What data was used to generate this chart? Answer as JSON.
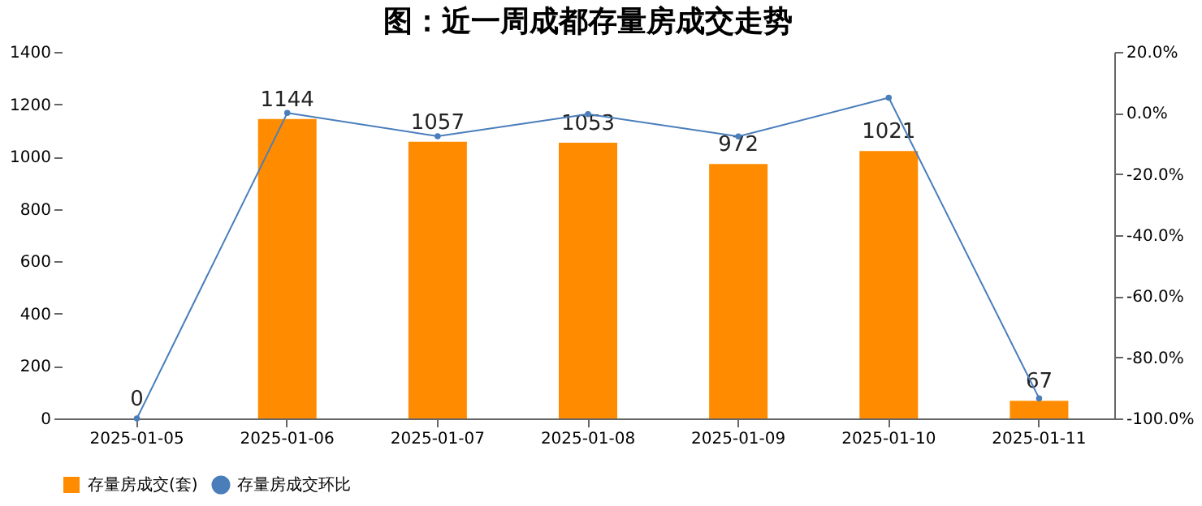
{
  "chart_data": {
    "type": "bar",
    "title": "图：近一周成都存量房成交走势",
    "categories": [
      "2025-01-05",
      "2025-01-06",
      "2025-01-07",
      "2025-01-08",
      "2025-01-09",
      "2025-01-10",
      "2025-01-11"
    ],
    "series": [
      {
        "name": "存量房成交(套)",
        "color": "#ff8c00",
        "values": [
          0,
          1144,
          1057,
          1053,
          972,
          1021,
          67
        ],
        "value_labels": [
          "0",
          "1144",
          "1057",
          "1053",
          "972",
          "1021",
          "67"
        ]
      },
      {
        "name": "存量房成交环比",
        "type": "line",
        "axis": "y2",
        "color": "#4a7ebb",
        "marker": "circle",
        "values": [
          -100,
          0,
          -7.6,
          -0.4,
          -7.7,
          5.0,
          -93.4
        ]
      }
    ],
    "ylim": [
      0,
      1400
    ],
    "yticks": [
      0,
      200,
      400,
      600,
      800,
      1000,
      1200,
      1400
    ],
    "y2lim": [
      -100,
      20
    ],
    "y2ticks": [
      {
        "value": 20,
        "label": "20.0%"
      },
      {
        "value": 0,
        "label": "0.0%"
      },
      {
        "value": -20,
        "label": "-20.0%"
      },
      {
        "value": -40,
        "label": "-40.0%"
      },
      {
        "value": -60,
        "label": "-60.0%"
      },
      {
        "value": -80,
        "label": "-80.0%"
      },
      {
        "value": -100,
        "label": "-100.0%"
      }
    ],
    "grid": false,
    "legend": "bottom"
  }
}
